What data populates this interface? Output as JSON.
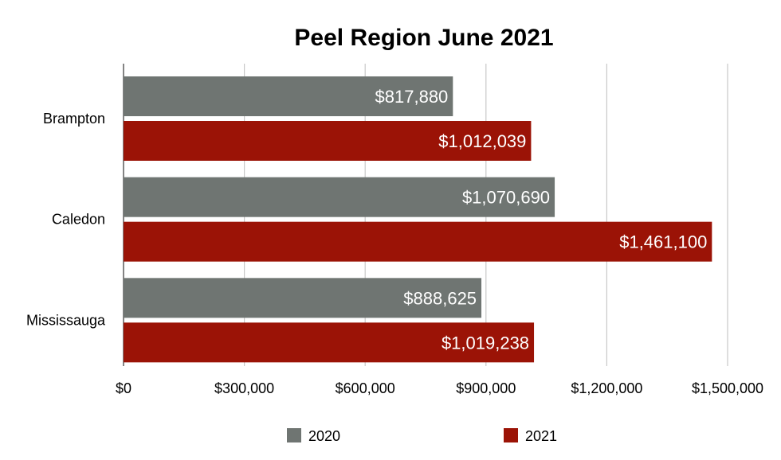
{
  "chart_data": {
    "type": "bar",
    "orientation": "horizontal",
    "title": "Peel Region June 2021",
    "categories": [
      "Brampton",
      "Caledon",
      "Mississauga"
    ],
    "series": [
      {
        "name": "2020",
        "color": "#6f7572",
        "values": [
          817880,
          1070690,
          888625
        ],
        "labels": [
          "$817,880",
          "$1,070,690",
          "$888,625"
        ]
      },
      {
        "name": "2021",
        "color": "#9b1306",
        "values": [
          1012039,
          1461100,
          1019238
        ],
        "labels": [
          "$1,012,039",
          "$1,461,100",
          "$1,019,238"
        ]
      }
    ],
    "xlim": [
      0,
      1500000
    ],
    "x_ticks": [
      0,
      300000,
      600000,
      900000,
      1200000,
      1500000
    ],
    "x_tick_labels": [
      "$0",
      "$300,000",
      "$600,000",
      "$900,000",
      "$1,200,000",
      "$1,500,000"
    ],
    "grid": true,
    "legend": "bottom"
  }
}
